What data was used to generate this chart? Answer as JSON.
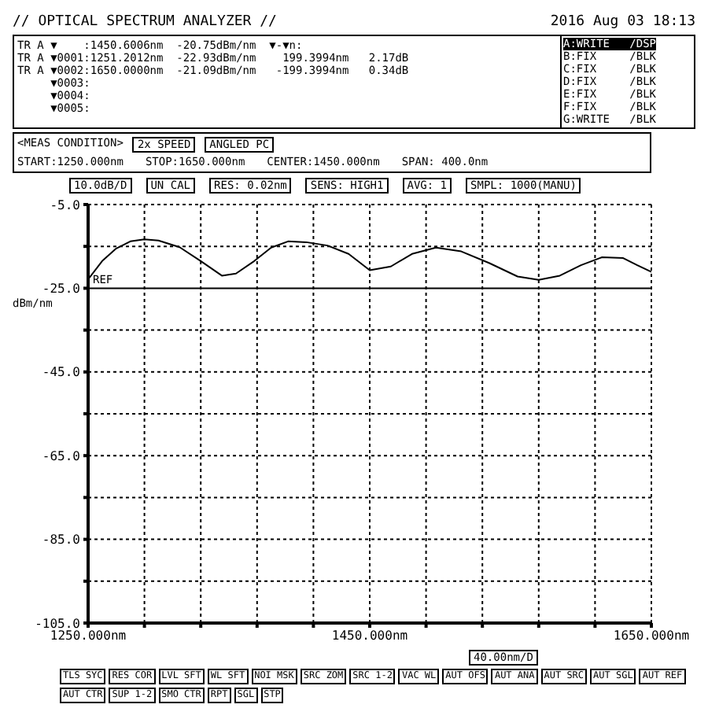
{
  "chart_data": {
    "type": "line",
    "title": "// OPTICAL SPECTRUM ANALYZER //",
    "subtitle": "2016 Aug 03 18:13",
    "ylabel": "dBm/nm",
    "x": [
      1250,
      1260,
      1270,
      1280,
      1290,
      1300,
      1315,
      1330,
      1345,
      1355,
      1368,
      1380,
      1392,
      1405,
      1420,
      1435,
      1450,
      1465,
      1480,
      1497,
      1515,
      1535,
      1555,
      1570,
      1585,
      1600,
      1615,
      1630,
      1640,
      1650
    ],
    "series": [
      {
        "color": "#000000",
        "values": [
          -22.9,
          -18.5,
          -15.5,
          -13.8,
          -13.3,
          -13.6,
          -15.2,
          -18.5,
          -22,
          -21.5,
          -18.5,
          -15.3,
          -13.8,
          -14,
          -14.8,
          -16.8,
          -20.7,
          -19.8,
          -16.8,
          -15.3,
          -16.2,
          -19,
          -22.2,
          -23,
          -22,
          -19.5,
          -17.6,
          -17.8,
          -19.5,
          -21.1
        ]
      }
    ],
    "xlim": [
      1250,
      1650
    ],
    "xticks": [
      {
        "value": 1250,
        "label": "1250.000nm"
      },
      {
        "value": 1290,
        "label": null
      },
      {
        "value": 1330,
        "label": null
      },
      {
        "value": 1370,
        "label": null
      },
      {
        "value": 1410,
        "label": null
      },
      {
        "value": 1450,
        "label": "1450.000nm"
      },
      {
        "value": 1490,
        "label": null
      },
      {
        "value": 1530,
        "label": null
      },
      {
        "value": 1570,
        "label": null
      },
      {
        "value": 1610,
        "label": null
      },
      {
        "value": 1650,
        "label": "1650.000nm"
      }
    ],
    "ylim": [
      -105,
      -5
    ],
    "yticks": [
      {
        "value": -5,
        "label": "-5.0"
      },
      {
        "value": -15,
        "label": null
      },
      {
        "value": -25,
        "label": "-25.0"
      },
      {
        "value": -35,
        "label": null
      },
      {
        "value": -45,
        "label": "-45.0"
      },
      {
        "value": -55,
        "label": null
      },
      {
        "value": -65,
        "label": "-65.0"
      },
      {
        "value": -75,
        "label": null
      },
      {
        "value": -85,
        "label": "-85.0"
      },
      {
        "value": -95,
        "label": null
      },
      {
        "value": -105,
        "label": "-105.0"
      }
    ],
    "ref_lines": [
      {
        "axis": "y",
        "value": -25,
        "label": "REF",
        "color": "#000000",
        "line_style": "solid"
      }
    ],
    "grid": true,
    "marker": "none",
    "line_style": "solid",
    "annotations": [
      "TR A ▼    :1450.6006nm  -20.75dBm/nm  ▼-▼n:",
      "TR A ▼0001:1251.2012nm  -22.93dBm/nm    199.3994nm   2.17dB",
      "TR A ▼0002:1650.0000nm  -21.09dBm/nm   -199.3994nm   0.34dB",
      "     ▼0003:",
      "     ▼0004:",
      "     ▼0005:",
      "A:WRITE   /DSP",
      "B:FIX     /BLK",
      "C:FIX     /BLK",
      "D:FIX     /BLK",
      "E:FIX     /BLK",
      "F:FIX     /BLK",
      "G:WRITE   /BLK",
      "<MEAS CONDITION>",
      "2x SPEED",
      "ANGLED PC",
      "START:1250.000nm",
      "STOP:1650.000nm",
      "CENTER:1450.000nm",
      "SPAN: 400.0nm",
      "10.0dB/D",
      "UN CAL",
      "RES: 0.02nm",
      "SENS: HIGH1",
      "AVG: 1",
      "SMPL: 1000(MANU)",
      "40.00nm/D",
      "TLS SYC",
      "RES COR",
      "LVL SFT",
      "WL SFT",
      "NOI MSK",
      "SRC ZOM",
      "SRC 1-2",
      "VAC WL",
      "AUT OFS",
      "AUT ANA",
      "AUT SRC",
      "AUT SGL",
      "AUT REF",
      "AUT CTR",
      "SUP 1-2",
      "SMO CTR",
      "RPT",
      "SGL",
      "STP"
    ]
  }
}
